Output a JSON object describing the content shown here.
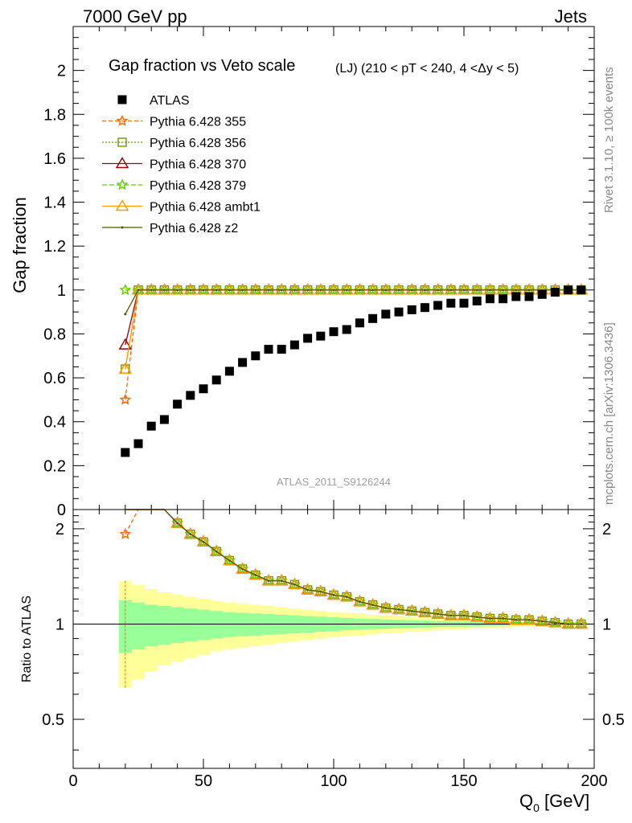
{
  "header": {
    "left": "7000 GeV pp",
    "right": "Jets",
    "side_top": "Rivet 3.1.10, ≥ 100k events",
    "side_bottom": "mcplots.cern.ch [arXiv:1306.3436]",
    "watermark": "ATLAS_2011_S9126244"
  },
  "chart_data": {
    "type": "scatter",
    "title": "Gap fraction vs Veto scale",
    "subtitle": "(LJ) (210 < pT < 240, 4 <Δy < 5)",
    "xlabel_main": "Q",
    "xlabel_sub": "0",
    "xlabel_unit": " [GeV]",
    "ylabel": "Gap fraction",
    "ratio_ylabel": "Ratio to ATLAS",
    "xlim": [
      0,
      200
    ],
    "ylim": [
      0,
      2.2
    ],
    "ratio_ylim": [
      0.35,
      2.3
    ],
    "x_ticks": [
      0,
      50,
      100,
      150,
      200
    ],
    "y_ticks": [
      0.2,
      0.4,
      0.6,
      0.8,
      1,
      1.2,
      1.4,
      1.6,
      1.8,
      2
    ],
    "y_tick_labels": [
      "0.2",
      "0.4",
      "0.6",
      "0.8",
      "1",
      "1.2",
      "1.4",
      "1.6",
      "1.8",
      "2"
    ],
    "ratio_ticks": [
      0.5,
      1,
      2
    ],
    "ratio_tick_labels": [
      "0.5",
      "1",
      "2"
    ],
    "x": [
      20,
      25,
      30,
      35,
      40,
      45,
      50,
      55,
      60,
      65,
      70,
      75,
      80,
      85,
      90,
      95,
      100,
      105,
      110,
      115,
      120,
      125,
      130,
      135,
      140,
      145,
      150,
      155,
      160,
      165,
      170,
      175,
      180,
      185,
      190,
      195
    ],
    "data": {
      "name": "ATLAS",
      "values": [
        0.26,
        0.3,
        0.38,
        0.41,
        0.48,
        0.52,
        0.55,
        0.59,
        0.63,
        0.67,
        0.7,
        0.73,
        0.73,
        0.75,
        0.78,
        0.79,
        0.81,
        0.82,
        0.85,
        0.87,
        0.89,
        0.9,
        0.91,
        0.92,
        0.93,
        0.94,
        0.94,
        0.95,
        0.96,
        0.96,
        0.97,
        0.97,
        0.98,
        0.99,
        1.0,
        1.0
      ],
      "band_inner": [
        0.19,
        0.17,
        0.15,
        0.14,
        0.13,
        0.12,
        0.11,
        0.1,
        0.09,
        0.085,
        0.08,
        0.075,
        0.07,
        0.065,
        0.06,
        0.055,
        0.05,
        0.045,
        0.04,
        0.037,
        0.034,
        0.031,
        0.028,
        0.025,
        0.022,
        0.02,
        0.018,
        0.016,
        0.014,
        0.012,
        0.011,
        0.01,
        0.009,
        0.008,
        0.007,
        0.006
      ],
      "band_outer": [
        0.37,
        0.33,
        0.29,
        0.26,
        0.24,
        0.22,
        0.2,
        0.18,
        0.17,
        0.16,
        0.15,
        0.14,
        0.13,
        0.12,
        0.11,
        0.1,
        0.09,
        0.085,
        0.08,
        0.07,
        0.065,
        0.06,
        0.055,
        0.05,
        0.045,
        0.04,
        0.036,
        0.032,
        0.028,
        0.025,
        0.022,
        0.02,
        0.018,
        0.016,
        0.014,
        0.012
      ]
    },
    "series": [
      {
        "name": "Pythia 6.428 355",
        "color": "#ff6600",
        "marker": "star",
        "dash": "5,3",
        "values": [
          0.5,
          1,
          1,
          1,
          1,
          1,
          1,
          1,
          1,
          1,
          1,
          1,
          1,
          1,
          1,
          1,
          1,
          1,
          1,
          1,
          1,
          1,
          1,
          1,
          1,
          1,
          1,
          1,
          1,
          1,
          1,
          1,
          1,
          1,
          1,
          1
        ]
      },
      {
        "name": "Pythia 6.428 356",
        "color": "#669900",
        "marker": "square-open",
        "dash": "2,2",
        "values": [
          0.64,
          1,
          1,
          1,
          1,
          1,
          1,
          1,
          1,
          1,
          1,
          1,
          1,
          1,
          1,
          1,
          1,
          1,
          1,
          1,
          1,
          1,
          1,
          1,
          1,
          1,
          1,
          1,
          1,
          1,
          1,
          1,
          1,
          1,
          1,
          1
        ]
      },
      {
        "name": "Pythia 6.428 370",
        "color": "#990000",
        "marker": "triangle-open",
        "dash": "",
        "values": [
          0.75,
          1,
          1,
          1,
          1,
          1,
          1,
          1,
          1,
          1,
          1,
          1,
          1,
          1,
          1,
          1,
          1,
          1,
          1,
          1,
          1,
          1,
          1,
          1,
          1,
          1,
          1,
          1,
          1,
          1,
          1,
          1,
          1,
          1,
          1,
          1
        ]
      },
      {
        "name": "Pythia 6.428 379",
        "color": "#66cc00",
        "marker": "star",
        "dash": "6,3",
        "values": [
          1.0,
          1,
          1,
          1,
          1,
          1,
          1,
          1,
          1,
          1,
          1,
          1,
          1,
          1,
          1,
          1,
          1,
          1,
          1,
          1,
          1,
          1,
          1,
          1,
          1,
          1,
          1,
          1,
          1,
          1,
          1,
          1,
          1,
          1,
          1,
          1
        ]
      },
      {
        "name": "Pythia 6.428 ambt1",
        "color": "#ff9900",
        "marker": "triangle-open",
        "dash": "",
        "values": [
          0.64,
          1,
          1,
          1,
          1,
          1,
          1,
          1,
          1,
          1,
          1,
          1,
          1,
          1,
          1,
          1,
          1,
          1,
          1,
          1,
          1,
          1,
          1,
          1,
          1,
          1,
          1,
          1,
          1,
          1,
          1,
          1,
          1,
          1,
          1,
          1
        ]
      },
      {
        "name": "Pythia 6.428 z2",
        "color": "#555500",
        "marker": "dot",
        "dash": "",
        "values": [
          0.89,
          1,
          1,
          1,
          1,
          1,
          1,
          1,
          1,
          1,
          1,
          1,
          1,
          1,
          1,
          1,
          1,
          1,
          1,
          1,
          1,
          1,
          1,
          1,
          1,
          1,
          1,
          1,
          1,
          1,
          1,
          1,
          1,
          1,
          1,
          1
        ]
      }
    ]
  }
}
